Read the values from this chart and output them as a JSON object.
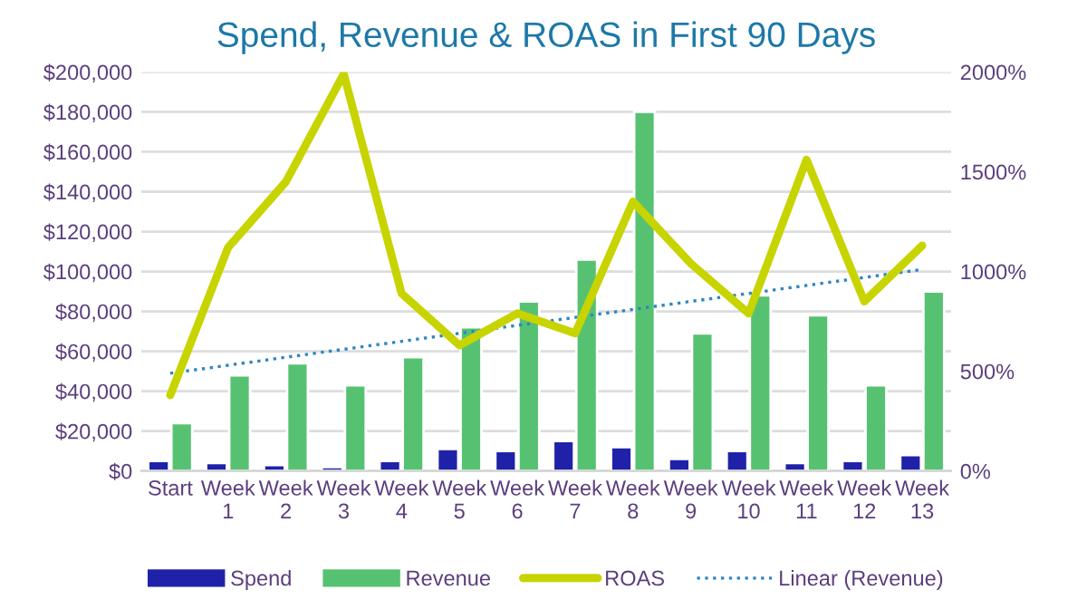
{
  "chart_data": {
    "type": "bar",
    "title": "Spend, Revenue & ROAS in First 90 Days",
    "categories": [
      "Start",
      "Week 1",
      "Week 2",
      "Week 3",
      "Week 4",
      "Week 5",
      "Week 6",
      "Week 7",
      "Week 8",
      "Week 9",
      "Week 10",
      "Week 11",
      "Week 12",
      "Week 13"
    ],
    "series": [
      {
        "name": "Spend",
        "color": "#1f22a8",
        "values": [
          5000,
          4000,
          3000,
          2000,
          5000,
          11000,
          10000,
          15000,
          12000,
          6000,
          10000,
          4000,
          5000,
          8000
        ]
      },
      {
        "name": "Revenue",
        "color": "#56c271",
        "values": [
          24000,
          48000,
          54000,
          43000,
          57000,
          72000,
          85000,
          106000,
          180000,
          69000,
          88000,
          78000,
          43000,
          90000
        ]
      },
      {
        "name": "ROAS",
        "type": "line",
        "axis": "y2",
        "color": "#c8d400",
        "values": [
          380,
          1120,
          1450,
          1990,
          890,
          630,
          790,
          690,
          1350,
          1040,
          790,
          1560,
          850,
          1130
        ]
      },
      {
        "name": "Linear (Revenue)",
        "type": "line",
        "line_style": "dotted",
        "color": "#2e86c1",
        "values": [
          49000,
          53000,
          57000,
          61000,
          65000,
          69000,
          73000,
          77000,
          81000,
          85000,
          89000,
          93000,
          97000,
          101000
        ]
      }
    ],
    "ylim": [
      0,
      200000
    ],
    "yticks": [
      {
        "value": 0,
        "label": "$0"
      },
      {
        "value": 20000,
        "label": "$20,000"
      },
      {
        "value": 40000,
        "label": "$40,000"
      },
      {
        "value": 60000,
        "label": "$60,000"
      },
      {
        "value": 80000,
        "label": "$80,000"
      },
      {
        "value": 100000,
        "label": "$100,000"
      },
      {
        "value": 120000,
        "label": "$120,000"
      },
      {
        "value": 140000,
        "label": "$140,000"
      },
      {
        "value": 160000,
        "label": "$160,000"
      },
      {
        "value": 180000,
        "label": "$180,000"
      },
      {
        "value": 200000,
        "label": "$200,000"
      }
    ],
    "y2lim": [
      0,
      2000
    ],
    "y2ticks": [
      {
        "value": 0,
        "label": "0%"
      },
      {
        "value": 500,
        "label": "500%"
      },
      {
        "value": 1000,
        "label": "1000%"
      },
      {
        "value": 1500,
        "label": "1500%"
      },
      {
        "value": 2000,
        "label": "2000%"
      }
    ],
    "grid": "y",
    "legend": "bottom"
  }
}
